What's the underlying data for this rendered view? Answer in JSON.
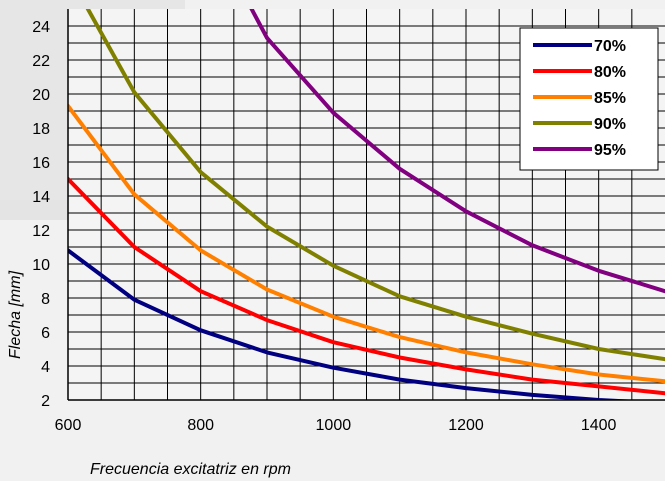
{
  "chart_data": {
    "type": "line",
    "title": "",
    "xlabel": "Frecuencia excitatriz en rpm",
    "ylabel": "Flecha [mm]",
    "xlim": [
      600,
      1500
    ],
    "ylim": [
      2,
      25
    ],
    "x_ticks": [
      600,
      800,
      1000,
      1200,
      1400
    ],
    "y_ticks": [
      2,
      4,
      6,
      8,
      10,
      12,
      14,
      16,
      18,
      20,
      22,
      24
    ],
    "grid": true,
    "legend_position": "top-right",
    "series": [
      {
        "name": "70%",
        "color": "#000080",
        "x": [
          600,
          700,
          800,
          900,
          1000,
          1100,
          1200,
          1300,
          1400,
          1500
        ],
        "y": [
          10.8,
          7.9,
          6.1,
          4.8,
          3.9,
          3.2,
          2.7,
          2.3,
          2.0,
          1.8
        ]
      },
      {
        "name": "80%",
        "color": "#ff0000",
        "x": [
          600,
          700,
          800,
          900,
          1000,
          1100,
          1200,
          1300,
          1400,
          1500
        ],
        "y": [
          15.0,
          11.0,
          8.4,
          6.7,
          5.4,
          4.5,
          3.8,
          3.2,
          2.8,
          2.4
        ]
      },
      {
        "name": "85%",
        "color": "#ff8000",
        "x": [
          600,
          700,
          800,
          900,
          1000,
          1100,
          1200,
          1300,
          1400,
          1500
        ],
        "y": [
          19.3,
          14.1,
          10.8,
          8.5,
          6.9,
          5.7,
          4.8,
          4.1,
          3.5,
          3.1
        ]
      },
      {
        "name": "90%",
        "color": "#808000",
        "x": [
          600,
          630,
          700,
          800,
          900,
          1000,
          1100,
          1200,
          1300,
          1400,
          1500
        ],
        "y": [
          27.5,
          25.0,
          20.1,
          15.4,
          12.2,
          9.9,
          8.1,
          6.9,
          5.9,
          5.0,
          4.4
        ]
      },
      {
        "name": "95%",
        "color": "#800080",
        "x": [
          870,
          900,
          1000,
          1100,
          1200,
          1300,
          1400,
          1500
        ],
        "y": [
          25.5,
          23.3,
          18.9,
          15.6,
          13.1,
          11.1,
          9.6,
          8.4
        ]
      }
    ]
  }
}
